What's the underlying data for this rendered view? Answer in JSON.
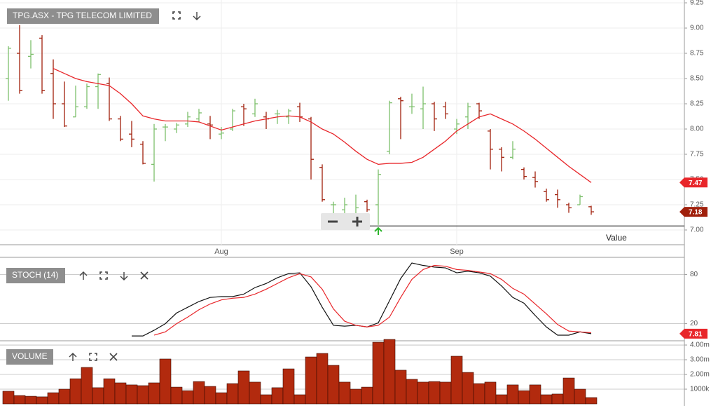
{
  "chart_data": [
    {
      "type": "ohlc",
      "title": "TPG.ASX - TPG TELECOM LIMITED",
      "value_axis_label": "Value",
      "categories": [
        null,
        null,
        null,
        null,
        null,
        null,
        null,
        null,
        null,
        null,
        null,
        null,
        null,
        null,
        null,
        null,
        null,
        null,
        null,
        "Aug",
        null,
        null,
        null,
        null,
        null,
        null,
        null,
        null,
        null,
        null,
        null,
        null,
        null,
        null,
        null,
        null,
        null,
        null,
        null,
        null,
        "Sep",
        null,
        null,
        null,
        null,
        null,
        null,
        null,
        null,
        null,
        null,
        null,
        null
      ],
      "open": [
        8.5,
        8.75,
        8.72,
        8.9,
        8.55,
        8.25,
        8.12,
        8.22,
        8.42,
        8.45,
        8.1,
        7.95,
        7.85,
        7.65,
        8.02,
        8.0,
        8.05,
        8.1,
        8.05,
        7.95,
        8.0,
        8.22,
        8.15,
        8.12,
        8.15,
        8.12,
        8.22,
        8.1,
        7.62,
        7.25,
        7.2,
        7.12,
        7.28,
        7.25,
        7.78,
        8.3,
        8.22,
        8.2,
        8.25,
        8.22,
        8.0,
        8.12,
        8.25,
        7.98,
        7.8,
        7.72,
        7.6,
        7.52,
        7.38,
        7.35,
        7.25,
        7.25,
        7.23
      ],
      "high": [
        8.82,
        9.03,
        8.88,
        8.93,
        8.69,
        8.47,
        8.43,
        8.45,
        8.55,
        8.51,
        8.13,
        8.08,
        7.88,
        8.05,
        8.05,
        8.06,
        8.17,
        8.2,
        8.13,
        8.02,
        8.2,
        8.25,
        8.3,
        8.17,
        8.19,
        8.2,
        8.26,
        8.12,
        7.65,
        7.28,
        7.32,
        7.35,
        7.3,
        7.6,
        8.28,
        8.32,
        8.35,
        8.42,
        8.27,
        8.27,
        8.1,
        8.26,
        8.26,
        8.0,
        7.82,
        7.88,
        7.62,
        7.58,
        7.41,
        7.4,
        7.27,
        7.35,
        7.24
      ],
      "low": [
        8.28,
        8.35,
        8.6,
        8.35,
        8.1,
        8.02,
        8.12,
        8.2,
        8.2,
        8.08,
        7.88,
        7.82,
        7.65,
        7.48,
        7.88,
        7.96,
        8.02,
        8.07,
        7.9,
        7.9,
        7.98,
        8.03,
        8.12,
        8.0,
        8.05,
        8.05,
        8.07,
        7.5,
        7.28,
        7.16,
        7.1,
        7.12,
        7.18,
        7.05,
        7.75,
        7.9,
        8.15,
        8.0,
        7.98,
        8.1,
        7.95,
        8.0,
        8.1,
        7.6,
        7.58,
        7.7,
        7.5,
        7.42,
        7.28,
        7.22,
        7.17,
        7.25,
        7.15
      ],
      "close": [
        8.8,
        8.38,
        8.74,
        8.38,
        8.25,
        8.03,
        8.22,
        8.42,
        8.54,
        8.1,
        7.9,
        7.9,
        7.66,
        8.0,
        8.02,
        8.04,
        8.12,
        8.16,
        8.04,
        7.96,
        8.18,
        8.2,
        8.25,
        8.1,
        8.15,
        8.18,
        8.12,
        7.7,
        7.3,
        7.25,
        7.25,
        7.22,
        7.2,
        7.55,
        8.26,
        8.28,
        8.22,
        8.25,
        8.1,
        8.15,
        8.05,
        8.22,
        8.18,
        7.8,
        7.72,
        7.8,
        7.53,
        7.48,
        7.3,
        7.3,
        7.22,
        7.33,
        7.18
      ],
      "up_color": "#7cbf6b",
      "down_color": "#a0200c",
      "ma": [
        null,
        null,
        null,
        null,
        8.6,
        8.55,
        8.5,
        8.47,
        8.45,
        8.43,
        8.35,
        8.25,
        8.13,
        8.1,
        8.08,
        8.08,
        8.08,
        8.07,
        8.03,
        7.99,
        8.02,
        8.05,
        8.08,
        8.1,
        8.12,
        8.13,
        8.12,
        8.07,
        8.0,
        7.95,
        7.87,
        7.78,
        7.7,
        7.65,
        7.66,
        7.66,
        7.67,
        7.72,
        7.8,
        7.88,
        7.98,
        8.05,
        8.12,
        8.15,
        8.1,
        8.05,
        7.98,
        7.9,
        7.81,
        7.72,
        7.63,
        7.55,
        7.47
      ],
      "ma_color": "#e8262a",
      "marker": 7.04,
      "ylim": [
        6.854,
        9.278
      ],
      "yticks": [
        {
          "value": 7,
          "label": "7.00"
        },
        {
          "value": 7.25,
          "label": "7.25"
        },
        {
          "value": 7.5,
          "label": "7.50"
        },
        {
          "value": 7.75,
          "label": "7.75"
        },
        {
          "value": 8,
          "label": "8.00"
        },
        {
          "value": 8.25,
          "label": "8.25"
        },
        {
          "value": 8.5,
          "label": "8.50"
        },
        {
          "value": 8.75,
          "label": "8.75"
        },
        {
          "value": 9,
          "label": "9.00"
        },
        {
          "value": 9.25,
          "label": "9.25"
        }
      ],
      "grid": true
    },
    {
      "type": "line",
      "title": "STOCH (14)",
      "series": [
        {
          "color": "#111111",
          "values": [
            null,
            null,
            null,
            null,
            null,
            null,
            null,
            null,
            null,
            null,
            null,
            5,
            5,
            12,
            20,
            33,
            40,
            47,
            52,
            53,
            53,
            56,
            64,
            69,
            76,
            81,
            82,
            65,
            40,
            18,
            17,
            18,
            16,
            21,
            48,
            75,
            94,
            91,
            89,
            88,
            82,
            84,
            82,
            78,
            66,
            52,
            45,
            30,
            16,
            6,
            6,
            10,
            7.81
          ]
        },
        {
          "color": "#e8262a",
          "values": [
            null,
            null,
            null,
            null,
            null,
            null,
            null,
            null,
            null,
            null,
            null,
            null,
            null,
            6,
            10,
            20,
            28,
            37,
            44,
            49,
            51,
            52,
            56,
            62,
            69,
            76,
            81,
            77,
            62,
            38,
            23,
            18,
            16,
            18,
            28,
            52,
            74,
            86,
            91,
            90,
            86,
            85,
            83,
            81,
            74,
            63,
            56,
            44,
            32,
            19,
            11,
            10,
            9
          ]
        }
      ],
      "ylim": [
        0,
        100
      ],
      "yticks": [
        20,
        80
      ],
      "grid": true
    },
    {
      "type": "bar",
      "title": "VOLUME",
      "color": "#b22a0e",
      "values": [
        0.86,
        0.57,
        0.52,
        0.48,
        0.76,
        1.0,
        1.71,
        2.48,
        1.1,
        1.71,
        1.43,
        1.29,
        1.24,
        1.43,
        3.05,
        1.14,
        0.9,
        1.52,
        1.19,
        0.76,
        1.38,
        2.24,
        1.48,
        0.62,
        1.1,
        2.38,
        0.62,
        3.19,
        3.43,
        2.62,
        1.48,
        1.0,
        1.14,
        4.19,
        4.38,
        2.29,
        1.67,
        1.48,
        1.52,
        1.48,
        3.24,
        2.14,
        1.38,
        1.48,
        0.62,
        1.29,
        0.9,
        1.29,
        0.62,
        0.67,
        1.76,
        1.0,
        0.43
      ],
      "ylim": [
        0,
        4.24
      ],
      "yticks": [
        {
          "value": 1,
          "label": "1000k"
        },
        {
          "value": 2,
          "label": "2.00m"
        },
        {
          "value": 3,
          "label": "3.00m"
        },
        {
          "value": 4,
          "label": "4.00m"
        }
      ],
      "grid": true
    }
  ]
}
